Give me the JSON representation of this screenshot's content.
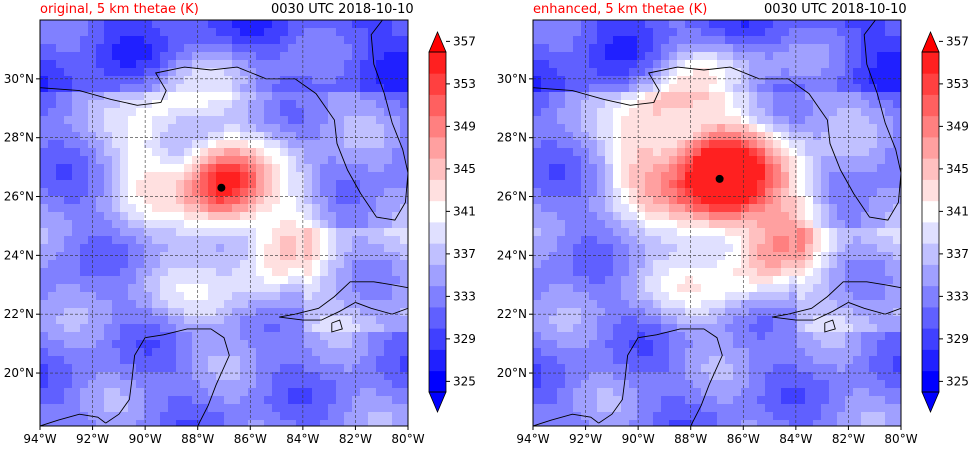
{
  "panels": [
    {
      "title": "original, 5 km thetae (K)",
      "time_label": "0030 UTC 2018-10-10",
      "center": {
        "lon": -87.1,
        "lat": 26.3
      },
      "core_strength": 1.0,
      "extent": {
        "lon": [
          -94,
          -80
        ],
        "lat": [
          18.2,
          32
        ]
      }
    },
    {
      "title": "enhanced, 5 km thetae (K)",
      "time_label": "0030 UTC 2018-10-10",
      "center": {
        "lon": -86.9,
        "lat": 26.6
      },
      "core_strength": 1.35,
      "extent": {
        "lon": [
          -94,
          -80
        ],
        "lat": [
          18.2,
          32
        ]
      }
    }
  ],
  "chart_data": {
    "type": "heatmap",
    "variable": "thetae",
    "units": "K",
    "level": "5 km",
    "x_tick_labels": [
      "94°W",
      "92°W",
      "90°W",
      "88°W",
      "86°W",
      "84°W",
      "82°W",
      "80°W"
    ],
    "x_ticks": [
      -94,
      -92,
      -90,
      -88,
      -86,
      -84,
      -82,
      -80
    ],
    "y_tick_labels": [
      "20°N",
      "22°N",
      "24°N",
      "26°N",
      "28°N",
      "30°N"
    ],
    "y_ticks": [
      20,
      22,
      24,
      26,
      28,
      30
    ],
    "grid": true,
    "colorbar": {
      "levels": [
        325,
        327,
        329,
        331,
        333,
        335,
        337,
        339,
        341,
        343,
        345,
        347,
        349,
        351,
        353,
        355,
        357
      ],
      "tick_labels": [
        "325",
        "329",
        "333",
        "337",
        "341",
        "345",
        "349",
        "353",
        "357"
      ],
      "tick_values": [
        325,
        329,
        333,
        337,
        341,
        345,
        349,
        353,
        357
      ],
      "extend": "both",
      "colors": [
        "#0000ff",
        "#2020ff",
        "#4040ff",
        "#6060ff",
        "#8080ff",
        "#a0a0ff",
        "#c0c0ff",
        "#e0e0ff",
        "#ffffff",
        "#ffe0e0",
        "#ffc0c0",
        "#ffa0a0",
        "#ff8080",
        "#ff6060",
        "#ff4040",
        "#ff2020"
      ]
    }
  }
}
